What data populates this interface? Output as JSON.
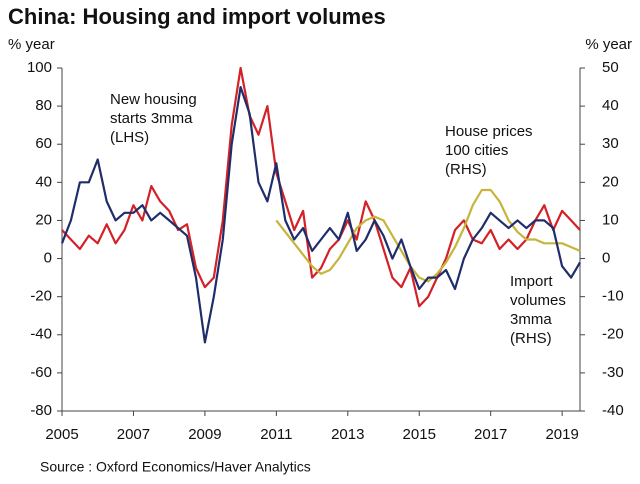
{
  "chart_data": {
    "type": "line",
    "title": "China: Housing and import volumes",
    "y_label": "% year",
    "y2_label": "% year",
    "source": "Source : Oxford Economics/Haver Analytics",
    "x": [
      2005,
      2005.25,
      2005.5,
      2005.75,
      2006,
      2006.25,
      2006.5,
      2006.75,
      2007,
      2007.25,
      2007.5,
      2007.75,
      2008,
      2008.25,
      2008.5,
      2008.75,
      2009,
      2009.25,
      2009.5,
      2009.75,
      2010,
      2010.25,
      2010.5,
      2010.75,
      2011,
      2011.25,
      2011.5,
      2011.75,
      2012,
      2012.25,
      2012.5,
      2012.75,
      2013,
      2013.25,
      2013.5,
      2013.75,
      2014,
      2014.25,
      2014.5,
      2014.75,
      2015,
      2015.25,
      2015.5,
      2015.75,
      2016,
      2016.25,
      2016.5,
      2016.75,
      2017,
      2017.25,
      2017.5,
      2017.75,
      2018,
      2018.25,
      2018.5,
      2018.75,
      2019,
      2019.25,
      2019.5
    ],
    "xlim": [
      2005,
      2019.5
    ],
    "xticks": [
      2005,
      2007,
      2009,
      2011,
      2013,
      2015,
      2017,
      2019
    ],
    "ylim": [
      -80,
      100
    ],
    "yticks": [
      -80,
      -60,
      -40,
      -20,
      0,
      20,
      40,
      60,
      80,
      100
    ],
    "y2lim": [
      -40,
      50
    ],
    "y2ticks": [
      -40,
      -30,
      -20,
      -10,
      0,
      10,
      20,
      30,
      40,
      50
    ],
    "series": [
      {
        "name": "New housing starts 3mma (LHS)",
        "color": "#d42027",
        "axis": "y",
        "values": [
          15,
          10,
          5,
          12,
          8,
          18,
          8,
          15,
          28,
          20,
          38,
          30,
          25,
          15,
          18,
          -5,
          -15,
          -10,
          20,
          70,
          100,
          75,
          65,
          80,
          45,
          30,
          15,
          25,
          -10,
          -5,
          5,
          10,
          20,
          10,
          30,
          20,
          5,
          -10,
          -15,
          -5,
          -25,
          -20,
          -10,
          0,
          15,
          20,
          10,
          8,
          15,
          5,
          10,
          5,
          10,
          20,
          28,
          15,
          25,
          20,
          15
        ]
      },
      {
        "name": "House prices 100 cities (RHS)",
        "color": "#c8b43a",
        "axis": "y2",
        "values": [
          null,
          null,
          null,
          null,
          null,
          null,
          null,
          null,
          null,
          null,
          null,
          null,
          null,
          null,
          null,
          null,
          null,
          null,
          null,
          null,
          null,
          null,
          null,
          null,
          10,
          7,
          4,
          1,
          -2,
          -4,
          -3,
          0,
          4,
          8,
          10,
          11,
          10,
          6,
          2,
          -2,
          -5,
          -6,
          -4,
          -1,
          3,
          8,
          14,
          18,
          18,
          15,
          10,
          7,
          5,
          5,
          4,
          4,
          4,
          3,
          2
        ]
      },
      {
        "name": "Import volumes 3mma (RHS)",
        "color": "#1f2d6b",
        "axis": "y2",
        "values": [
          4,
          10,
          20,
          20,
          26,
          15,
          10,
          12,
          12,
          14,
          10,
          12,
          10,
          8,
          6,
          -5,
          -22,
          -10,
          5,
          30,
          45,
          38,
          20,
          15,
          25,
          10,
          5,
          8,
          2,
          5,
          8,
          5,
          12,
          2,
          5,
          10,
          6,
          0,
          5,
          -2,
          -8,
          -5,
          -5,
          -3,
          -8,
          0,
          5,
          8,
          12,
          10,
          8,
          10,
          8,
          10,
          10,
          8,
          -2,
          -5,
          -1
        ]
      }
    ],
    "annotations": [
      [
        "New housing",
        "starts 3mma",
        "(LHS)"
      ],
      [
        "House prices",
        "100 cities",
        "(RHS)"
      ],
      [
        "Import",
        "volumes",
        "3mma",
        "(RHS)"
      ]
    ]
  }
}
